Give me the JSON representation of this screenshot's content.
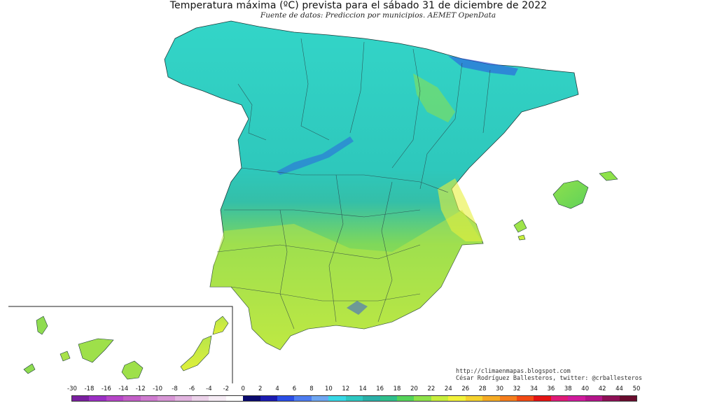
{
  "title": "Temperatura máxima (ºC) prevista para el sábado 31 de diciembre de 2022",
  "subtitle": "Fuente de datos: Prediccion por municipios. AEMET OpenData",
  "credits": {
    "url": "http://climaenmapas.blogspot.com",
    "author": "César Rodríguez Ballesteros, twitter: @crballesteros"
  },
  "legend": {
    "ticks": [
      "-30",
      "-18",
      "-16",
      "-14",
      "-12",
      "-10",
      "-8",
      "-6",
      "-4",
      "-2",
      "0",
      "2",
      "4",
      "6",
      "8",
      "10",
      "12",
      "14",
      "16",
      "18",
      "20",
      "22",
      "24",
      "26",
      "28",
      "30",
      "32",
      "34",
      "36",
      "38",
      "40",
      "42",
      "44",
      "50"
    ],
    "colors": [
      "#7a1fa0",
      "#9b2fc4",
      "#b646c8",
      "#c35fc8",
      "#cf7bd0",
      "#d896d6",
      "#e2b4e0",
      "#ecd2ea",
      "#f6ecf5",
      "#ffffff",
      "#0a0a6e",
      "#1b1bb0",
      "#2a4ee6",
      "#4d7cf0",
      "#6ea6f2",
      "#37d8e6",
      "#2ec8c2",
      "#2ab0a8",
      "#2fbf8c",
      "#55d35a",
      "#8ee24a",
      "#c8ee3c",
      "#f2f23a",
      "#f5d22e",
      "#f5ab24",
      "#f57d1c",
      "#f24a14",
      "#e41414",
      "#e01a78",
      "#d01a9c",
      "#b4148a",
      "#8e1056",
      "#6a0c2e"
    ]
  },
  "map": {
    "regions": [
      "Peninsula",
      "Baleares",
      "Canarias"
    ],
    "dominant_colors": {
      "north": "#2fd3c4",
      "central": "#30bfb0",
      "south": "#a5e24a",
      "east_coast": "#c8ee3c",
      "mountains": "#2a4ee6"
    }
  }
}
